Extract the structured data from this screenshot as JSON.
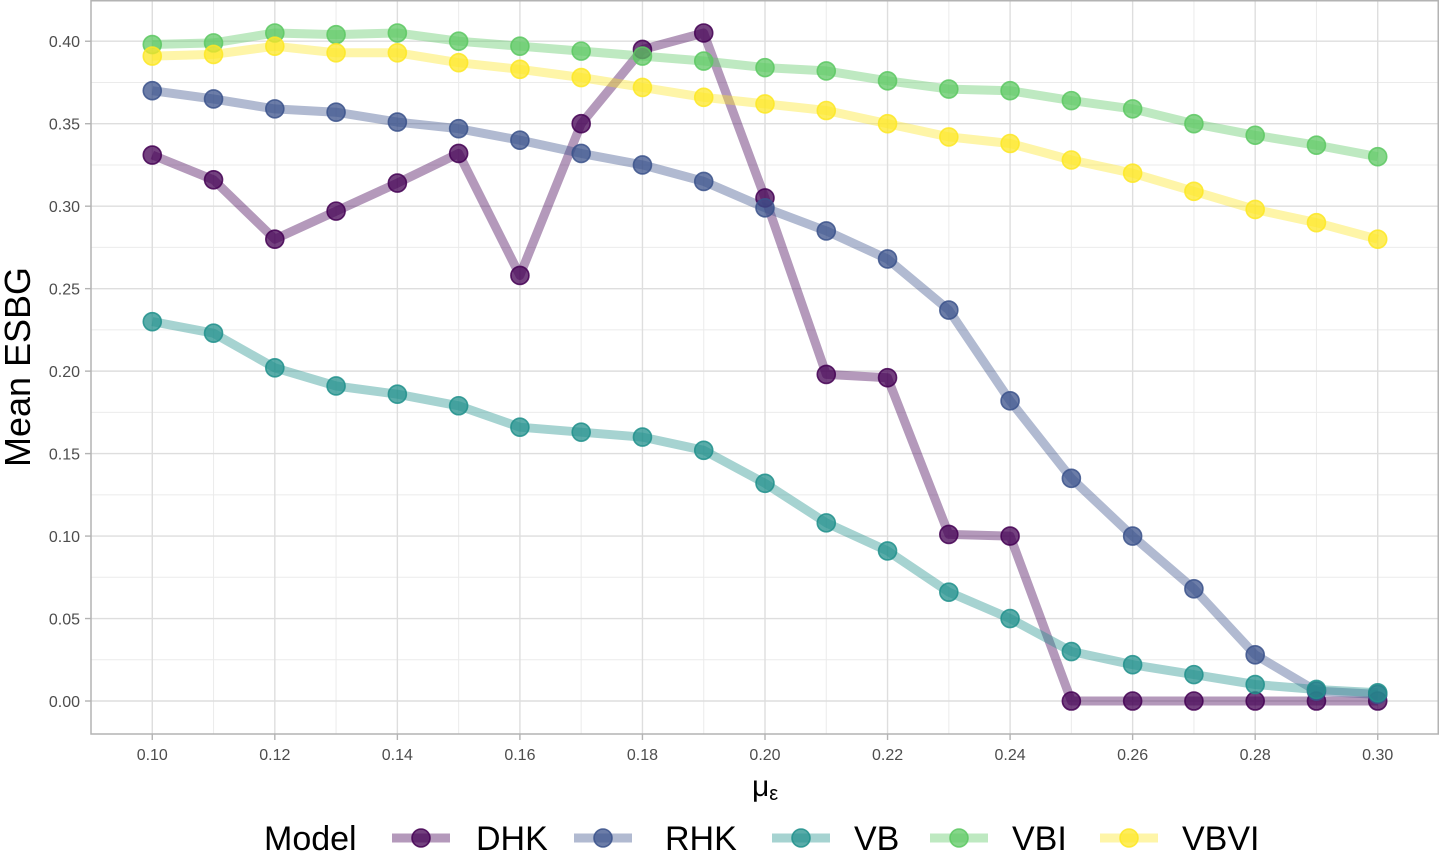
{
  "chart_data": {
    "type": "line",
    "title": "",
    "xlabel": "μ",
    "xlabel_subscript": "ε",
    "ylabel": "Mean ESBG",
    "xlim": [
      0.09,
      0.31
    ],
    "ylim": [
      -0.02,
      0.425
    ],
    "x_ticks": [
      0.1,
      0.12,
      0.14,
      0.16,
      0.18,
      0.2,
      0.22,
      0.24,
      0.26,
      0.28,
      0.3
    ],
    "x_tick_labels": [
      "0.10",
      "0.12",
      "0.14",
      "0.16",
      "0.18",
      "0.20",
      "0.22",
      "0.24",
      "0.26",
      "0.28",
      "0.30"
    ],
    "y_ticks": [
      0.0,
      0.05,
      0.1,
      0.15,
      0.2,
      0.25,
      0.3,
      0.35,
      0.4
    ],
    "y_tick_labels": [
      "0.00",
      "0.05",
      "0.10",
      "0.15",
      "0.20",
      "0.25",
      "0.30",
      "0.35",
      "0.40"
    ],
    "grid": true,
    "legend": {
      "title": "Model",
      "position": "bottom"
    },
    "x": [
      0.1,
      0.11,
      0.12,
      0.13,
      0.14,
      0.15,
      0.16,
      0.17,
      0.18,
      0.19,
      0.2,
      0.21,
      0.22,
      0.23,
      0.24,
      0.25,
      0.26,
      0.27,
      0.28,
      0.29,
      0.3
    ],
    "series": [
      {
        "name": "DHK",
        "color": "#440154",
        "values": [
          0.331,
          0.316,
          0.28,
          0.297,
          0.314,
          0.332,
          0.258,
          0.35,
          0.395,
          0.405,
          0.305,
          0.198,
          0.196,
          0.101,
          0.1,
          0.0,
          0.0,
          0.0,
          0.0,
          0.0,
          0.0
        ]
      },
      {
        "name": "RHK",
        "color": "#3B528B",
        "values": [
          0.37,
          0.365,
          0.359,
          0.357,
          0.351,
          0.347,
          0.34,
          0.332,
          0.325,
          0.315,
          0.299,
          0.285,
          0.268,
          0.237,
          0.182,
          0.135,
          0.1,
          0.068,
          0.028,
          0.006,
          0.004
        ]
      },
      {
        "name": "VB",
        "color": "#21908C",
        "values": [
          0.23,
          0.223,
          0.202,
          0.191,
          0.186,
          0.179,
          0.166,
          0.163,
          0.16,
          0.152,
          0.132,
          0.108,
          0.091,
          0.066,
          0.05,
          0.03,
          0.022,
          0.016,
          0.01,
          0.007,
          0.005
        ]
      },
      {
        "name": "VBI",
        "color": "#5DC863",
        "values": [
          0.398,
          0.399,
          0.405,
          0.404,
          0.405,
          0.4,
          0.397,
          0.394,
          0.391,
          0.388,
          0.384,
          0.382,
          0.376,
          0.371,
          0.37,
          0.364,
          0.359,
          0.35,
          0.343,
          0.337,
          0.33
        ]
      },
      {
        "name": "VBVI",
        "color": "#FDE725",
        "values": [
          0.391,
          0.392,
          0.397,
          0.393,
          0.393,
          0.387,
          0.383,
          0.378,
          0.372,
          0.366,
          0.362,
          0.358,
          0.35,
          0.342,
          0.338,
          0.328,
          0.32,
          0.309,
          0.298,
          0.29,
          0.28
        ]
      }
    ]
  }
}
